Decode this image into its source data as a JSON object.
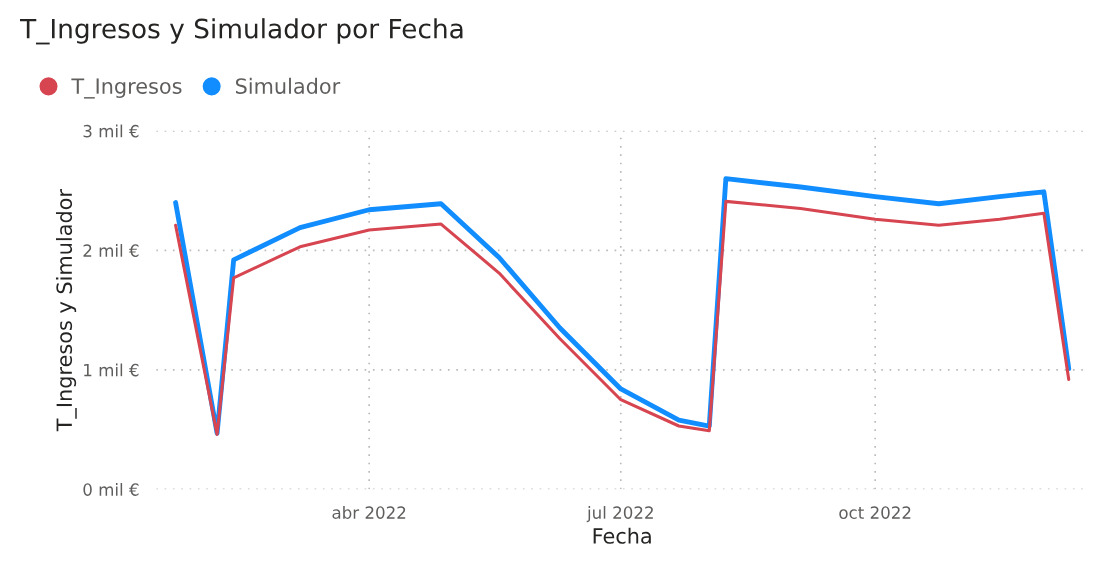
{
  "chart_data": {
    "type": "line",
    "title": "T_Ingresos y Simulador por Fecha",
    "xlabel": "Fecha",
    "ylabel": "T_Ingresos y Simulador",
    "x": [
      "2022-01-21",
      "2022-02-05",
      "2022-02-11",
      "2022-03-07",
      "2022-04-01",
      "2022-04-27",
      "2022-05-18",
      "2022-06-09",
      "2022-07-01",
      "2022-07-22",
      "2022-08-02",
      "2022-08-08",
      "2022-09-04",
      "2022-10-01",
      "2022-10-24",
      "2022-11-15",
      "2022-12-01",
      "2022-12-10"
    ],
    "series": [
      {
        "name": "T_Ingresos",
        "color": "#d64550",
        "values": [
          2.21,
          0.46,
          1.77,
          2.03,
          2.17,
          2.22,
          1.81,
          1.26,
          0.75,
          0.53,
          0.49,
          2.41,
          2.35,
          2.26,
          2.21,
          2.26,
          2.31,
          0.92
        ]
      },
      {
        "name": "Simulador",
        "color": "#118dff",
        "values": [
          2.4,
          0.47,
          1.92,
          2.19,
          2.34,
          2.39,
          1.94,
          1.35,
          0.84,
          0.58,
          0.53,
          2.6,
          2.53,
          2.45,
          2.39,
          2.45,
          2.49,
          1.01
        ]
      }
    ],
    "xlim": [
      "2022-01-14",
      "2022-12-17"
    ],
    "xticks": [
      {
        "value": "2022-04-01",
        "label": "abr 2022"
      },
      {
        "value": "2022-07-01",
        "label": "jul 2022"
      },
      {
        "value": "2022-10-01",
        "label": "oct 2022"
      }
    ],
    "ylim": [
      0,
      3
    ],
    "yticks": [
      {
        "value": 0,
        "label": "0 mil €"
      },
      {
        "value": 1,
        "label": "1 mil €"
      },
      {
        "value": 2,
        "label": "2 mil €"
      },
      {
        "value": 3,
        "label": "3 mil €"
      }
    ],
    "grid": true,
    "legend": "top left",
    "marker": "none",
    "line_style": "solid"
  }
}
